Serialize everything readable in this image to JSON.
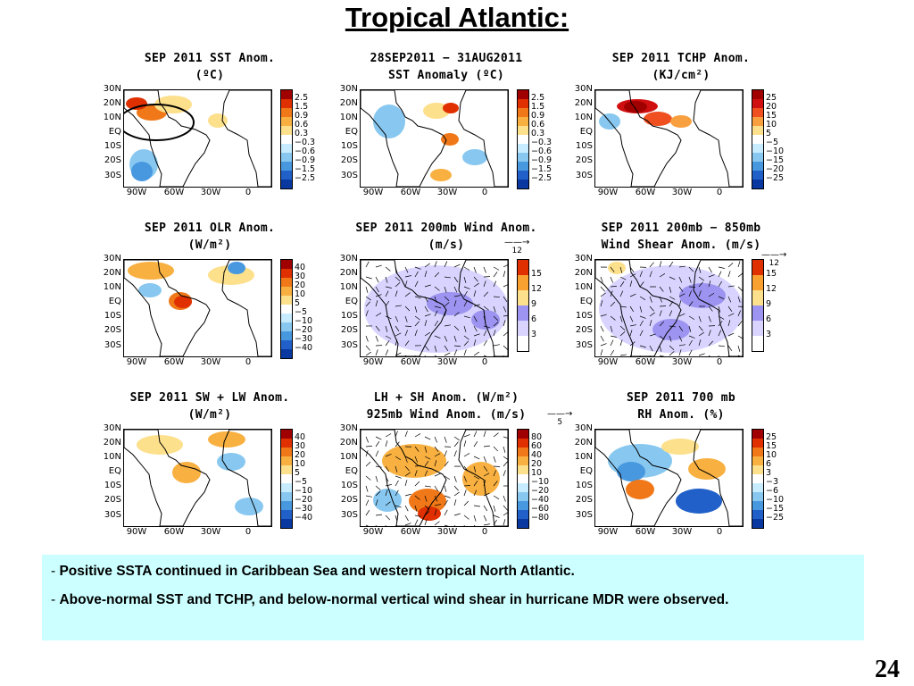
{
  "slide": {
    "title": "Tropical Atlantic:",
    "page_number": "24"
  },
  "axes": {
    "lat": [
      "30N",
      "20N",
      "10N",
      "EQ",
      "10S",
      "20S",
      "30S"
    ],
    "lon": [
      "90W",
      "60W",
      "30W",
      "0"
    ]
  },
  "panels": [
    {
      "id": "sst",
      "title1": "SEP 2011 SST Anom.",
      "title2": "(ºC)",
      "cbar_labels": [
        "2.5",
        "1.5",
        "0.9",
        "0.6",
        "0.3",
        "−0.3",
        "−0.6",
        "−0.9",
        "−1.5",
        "−2.5"
      ],
      "cbar_colors": [
        "#a00000",
        "#e03000",
        "#f07818",
        "#f8b040",
        "#fde08c",
        "#ffffff",
        "#c8ecff",
        "#88c8f0",
        "#4898e0",
        "#2060c8",
        "#0838a0"
      ]
    },
    {
      "id": "sst-change",
      "title1": "28SEP2011 − 31AUG2011",
      "title2": "SST Anomaly (ºC)",
      "cbar_labels": [
        "2.5",
        "1.5",
        "0.9",
        "0.6",
        "0.3",
        "−0.3",
        "−0.6",
        "−0.9",
        "−1.5",
        "−2.5"
      ],
      "cbar_colors": [
        "#a00000",
        "#e03000",
        "#f07818",
        "#f8b040",
        "#fde08c",
        "#ffffff",
        "#c8ecff",
        "#88c8f0",
        "#4898e0",
        "#2060c8",
        "#0838a0"
      ]
    },
    {
      "id": "tchp",
      "title1": "SEP 2011 TCHP Anom.",
      "title2": "(KJ/cm²)",
      "cbar_labels": [
        "25",
        "20",
        "15",
        "10",
        "5",
        "−5",
        "−10",
        "−15",
        "−20",
        "−25"
      ],
      "cbar_colors": [
        "#a00000",
        "#d01010",
        "#f05020",
        "#f8a040",
        "#fde08c",
        "#ffffff",
        "#c8ecff",
        "#88c8f0",
        "#4898e0",
        "#2060c8",
        "#0838a0"
      ]
    },
    {
      "id": "olr",
      "title1": "SEP 2011 OLR Anom.",
      "title2": "(W/m²)",
      "cbar_labels": [
        "40",
        "30",
        "20",
        "10",
        "5",
        "−5",
        "−10",
        "−20",
        "−30",
        "−40"
      ],
      "cbar_colors": [
        "#a00000",
        "#e03000",
        "#f07818",
        "#f8b040",
        "#fde08c",
        "#ffffff",
        "#c8ecff",
        "#88c8f0",
        "#4898e0",
        "#2060c8",
        "#0838a0"
      ]
    },
    {
      "id": "wind200",
      "title1": "SEP 2011 200mb Wind Anom.",
      "title2": "(m/s)",
      "ref": "12",
      "cbar_labels": [
        "15",
        "12",
        "9",
        "6",
        "3"
      ],
      "cbar_colors": [
        "#e03000",
        "#f8a030",
        "#fde08c",
        "#9c94f0",
        "#d8d4ff",
        "#ffffff"
      ]
    },
    {
      "id": "shear",
      "title1": "SEP 2011 200mb − 850mb",
      "title2": "Wind Shear Anom. (m/s)",
      "ref": "12",
      "cbar_labels": [
        "15",
        "12",
        "9",
        "6",
        "3"
      ],
      "cbar_colors": [
        "#e03000",
        "#f8a030",
        "#fde08c",
        "#9c94f0",
        "#d8d4ff",
        "#ffffff"
      ]
    },
    {
      "id": "swlw",
      "title1": "SEP 2011 SW + LW Anom.",
      "title2": "(W/m²)",
      "cbar_labels": [
        "40",
        "30",
        "20",
        "10",
        "5",
        "−5",
        "−10",
        "−20",
        "−30",
        "−40"
      ],
      "cbar_colors": [
        "#a00000",
        "#e03000",
        "#f07818",
        "#f8b040",
        "#fde08c",
        "#ffffff",
        "#c8ecff",
        "#88c8f0",
        "#4898e0",
        "#2060c8",
        "#0838a0"
      ]
    },
    {
      "id": "lhsh",
      "title1": "LH + SH Anom. (W/m²)",
      "title2": "925mb Wind Anom. (m/s)",
      "ref": "5",
      "cbar_labels": [
        "80",
        "60",
        "40",
        "20",
        "10",
        "−10",
        "−20",
        "−40",
        "−60",
        "−80"
      ],
      "cbar_colors": [
        "#a00000",
        "#e03000",
        "#f07818",
        "#f8b040",
        "#fde08c",
        "#ffffff",
        "#c8ecff",
        "#88c8f0",
        "#4898e0",
        "#2060c8",
        "#0838a0"
      ]
    },
    {
      "id": "rh",
      "title1": "SEP 2011 700 mb",
      "title2": "RH Anom. (%)",
      "cbar_labels": [
        "25",
        "15",
        "10",
        "6",
        "3",
        "−3",
        "−6",
        "−10",
        "−15",
        "−25"
      ],
      "cbar_colors": [
        "#a00000",
        "#e03000",
        "#f07818",
        "#f8b040",
        "#fde08c",
        "#ffffff",
        "#c8ecff",
        "#88c8f0",
        "#4898e0",
        "#2060c8",
        "#0838a0"
      ]
    }
  ],
  "notes": {
    "dash": "- ",
    "line1": "Positive SSTA  continued in Caribbean Sea and western tropical North Atlantic.",
    "line2": "Above-normal SST and TCHP, and below-normal vertical  wind shear  in hurricane MDR were observed."
  }
}
